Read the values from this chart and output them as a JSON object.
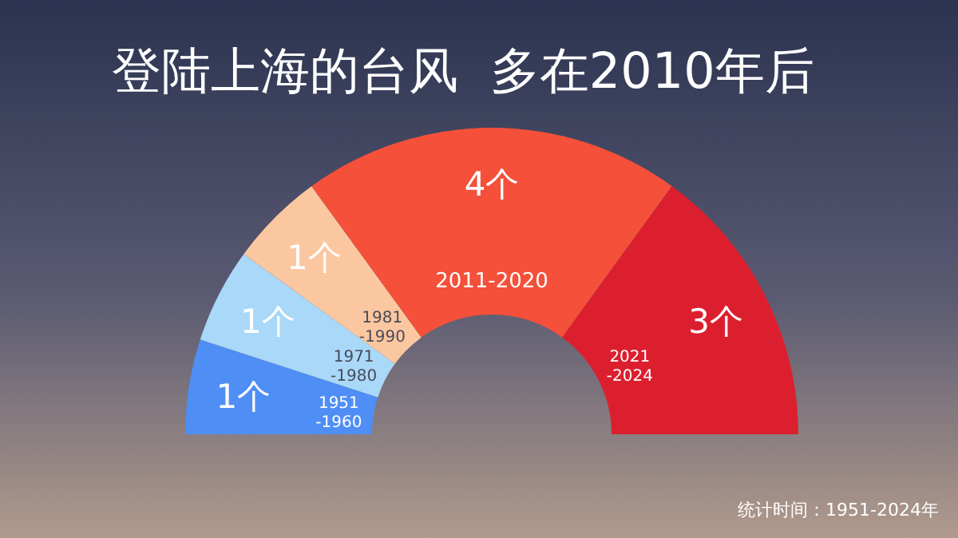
{
  "chart_data": {
    "type": "donut",
    "title": "登陆上海的台风  多在2010年后",
    "categories": [
      "1951-1960",
      "1971-1980",
      "1981-1990",
      "2011-2020",
      "2021-2024"
    ],
    "values": [
      1,
      1,
      1,
      4,
      3
    ],
    "colors": [
      "#4f8ef5",
      "#a9d8f8",
      "#fbc7a0",
      "#f4503a",
      "#dc1f2e"
    ],
    "value_labels": [
      "1个",
      "1个",
      "1个",
      "4个",
      "3个"
    ],
    "annotations": [
      "统计时间：1951-2024年"
    ]
  }
}
